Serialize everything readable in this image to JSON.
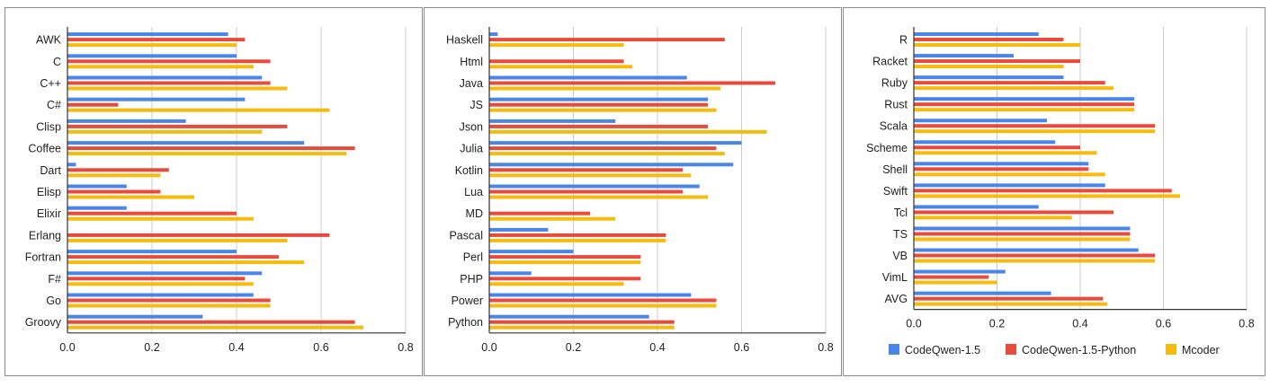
{
  "colors": {
    "CodeQwen-1.5": "#4a86e8",
    "CodeQwen-1.5-Python": "#e84a3c",
    "Mcoder": "#f6bb0f",
    "gridline": "#cccccc",
    "axis": "#333333",
    "border": "#8c8c8c"
  },
  "legend": {
    "items": [
      "CodeQwen-1.5",
      "CodeQwen-1.5-Python",
      "Mcoder"
    ],
    "placement": "bottom (right panel)"
  },
  "chart_data": [
    {
      "type": "bar",
      "orientation": "horizontal",
      "title": "",
      "xlabel": "",
      "ylabel": "",
      "xlim": [
        0,
        0.8
      ],
      "xticks": [
        "0.0",
        "0.2",
        "0.4",
        "0.6",
        "0.8"
      ],
      "grid": true,
      "categories": [
        "AWK",
        "C",
        "C++",
        "C#",
        "Clisp",
        "Coffee",
        "Dart",
        "Elisp",
        "Elixir",
        "Erlang",
        "Fortran",
        "F#",
        "Go",
        "Groovy"
      ],
      "series": [
        {
          "name": "CodeQwen-1.5",
          "values": [
            0.38,
            0.4,
            0.46,
            0.42,
            0.28,
            0.56,
            0.02,
            0.14,
            0.14,
            0.0,
            0.4,
            0.46,
            0.44,
            0.32
          ]
        },
        {
          "name": "CodeQwen-1.5-Python",
          "values": [
            0.42,
            0.48,
            0.48,
            0.12,
            0.52,
            0.68,
            0.24,
            0.22,
            0.4,
            0.62,
            0.5,
            0.42,
            0.48,
            0.68
          ]
        },
        {
          "name": "Mcoder",
          "values": [
            0.4,
            0.44,
            0.52,
            0.62,
            0.46,
            0.66,
            0.22,
            0.3,
            0.44,
            0.52,
            0.56,
            0.44,
            0.48,
            0.7
          ]
        }
      ]
    },
    {
      "type": "bar",
      "orientation": "horizontal",
      "title": "",
      "xlabel": "",
      "ylabel": "",
      "xlim": [
        0,
        0.8
      ],
      "xticks": [
        "0.0",
        "0.2",
        "0.4",
        "0.6",
        "0.8"
      ],
      "grid": true,
      "categories": [
        "Haskell",
        "Html",
        "Java",
        "JS",
        "Json",
        "Julia",
        "Kotlin",
        "Lua",
        "MD",
        "Pascal",
        "Perl",
        "PHP",
        "Power",
        "Python"
      ],
      "series": [
        {
          "name": "CodeQwen-1.5",
          "values": [
            0.02,
            0.0,
            0.47,
            0.52,
            0.3,
            0.6,
            0.58,
            0.5,
            0.0,
            0.14,
            0.2,
            0.1,
            0.48,
            0.38
          ]
        },
        {
          "name": "CodeQwen-1.5-Python",
          "values": [
            0.56,
            0.32,
            0.68,
            0.52,
            0.52,
            0.54,
            0.46,
            0.46,
            0.24,
            0.42,
            0.36,
            0.36,
            0.54,
            0.44
          ]
        },
        {
          "name": "Mcoder",
          "values": [
            0.32,
            0.34,
            0.55,
            0.54,
            0.66,
            0.56,
            0.48,
            0.52,
            0.3,
            0.42,
            0.36,
            0.32,
            0.54,
            0.44
          ]
        }
      ]
    },
    {
      "type": "bar",
      "orientation": "horizontal",
      "title": "",
      "xlabel": "",
      "ylabel": "",
      "xlim": [
        0,
        0.8
      ],
      "xticks": [
        "0.0",
        "0.2",
        "0.4",
        "0.6",
        "0.8"
      ],
      "grid": true,
      "categories": [
        "R",
        "Racket",
        "Ruby",
        "Rust",
        "Scala",
        "Scheme",
        "Shell",
        "Swift",
        "Tcl",
        "TS",
        "VB",
        "VimL",
        "AVG"
      ],
      "series": [
        {
          "name": "CodeQwen-1.5",
          "values": [
            0.3,
            0.24,
            0.36,
            0.53,
            0.32,
            0.34,
            0.42,
            0.46,
            0.3,
            0.52,
            0.54,
            0.22,
            0.33
          ]
        },
        {
          "name": "CodeQwen-1.5-Python",
          "values": [
            0.36,
            0.4,
            0.46,
            0.53,
            0.58,
            0.4,
            0.42,
            0.62,
            0.48,
            0.52,
            0.58,
            0.18,
            0.455
          ]
        },
        {
          "name": "Mcoder",
          "values": [
            0.4,
            0.36,
            0.48,
            0.53,
            0.58,
            0.44,
            0.46,
            0.64,
            0.38,
            0.52,
            0.58,
            0.2,
            0.465
          ]
        }
      ]
    }
  ]
}
